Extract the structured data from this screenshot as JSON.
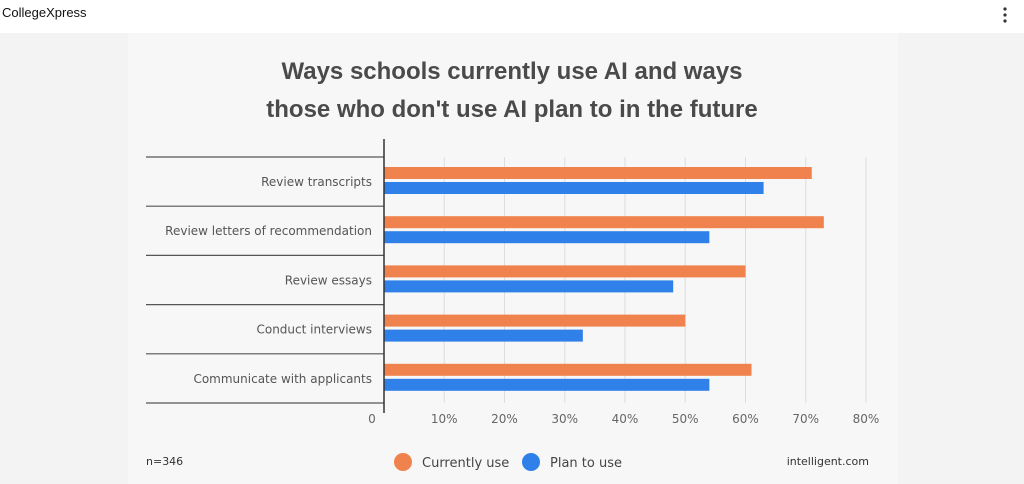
{
  "header": {
    "site_name": "CollegeXpress",
    "menu_icon": "more-vertical-icon"
  },
  "footer": {
    "sample_size": "n=346",
    "source": "intelligent.com"
  },
  "colors": {
    "currently_use": "#f0834d",
    "plan_to_use": "#2f80e8",
    "grid": "#dddddd",
    "axis": "#333333"
  },
  "chart_data": {
    "type": "bar",
    "orientation": "horizontal",
    "title_lines": [
      "Ways schools currently use AI and ways",
      "those who don't use AI plan to in the future"
    ],
    "categories": [
      "Review transcripts",
      "Review letters of recommendation",
      "Review essays",
      "Conduct interviews",
      "Communicate with applicants"
    ],
    "series": [
      {
        "name": "Currently use",
        "values": [
          71,
          73,
          60,
          50,
          61
        ]
      },
      {
        "name": "Plan to use",
        "values": [
          63,
          54,
          48,
          33,
          54
        ]
      }
    ],
    "ticks": [
      "0",
      "10%",
      "20%",
      "30%",
      "40%",
      "50%",
      "60%",
      "70%",
      "80%"
    ],
    "xlim": [
      0,
      80
    ],
    "grid": true,
    "legend_position": "bottom"
  }
}
